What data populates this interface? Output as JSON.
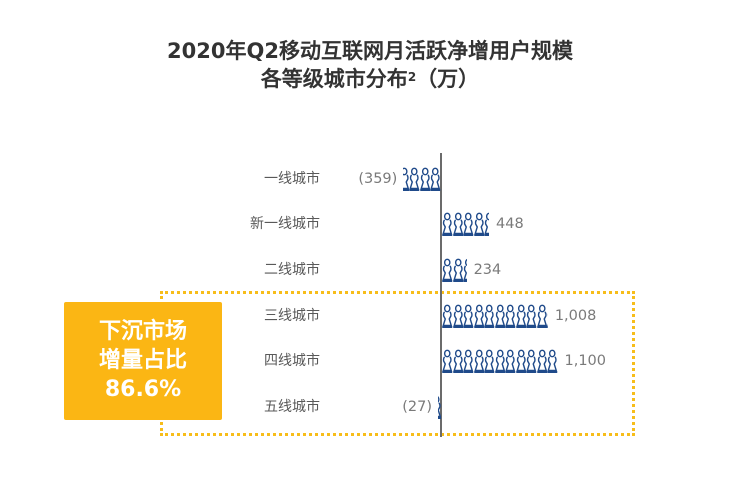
{
  "title": {
    "line1": "2020年Q2移动互联网月活跃净增用户规模",
    "line2": "各等级城市分布",
    "superscript": "2",
    "unit": "（万）"
  },
  "callout": {
    "line1": "下沉市场",
    "line2": "增量占比",
    "line3": "86.6%"
  },
  "colors": {
    "icon": "#1f4a8a",
    "callout_bg": "#fbb614",
    "dotted_border": "#f7bd1a",
    "axis": "#6b6b6b"
  },
  "chart_data": {
    "type": "bar",
    "orientation": "horizontal",
    "style": "pictogram (person icons, ~100万 per icon)",
    "title": "2020年Q2移动互联网月活跃净增用户规模各等级城市分布（万）",
    "unit": "万",
    "categories": [
      "一线城市",
      "新一线城市",
      "二线城市",
      "三线城市",
      "四线城市",
      "五线城市"
    ],
    "values": [
      -359,
      448,
      234,
      1008,
      1100,
      -27
    ],
    "value_labels": [
      "(359)",
      "448",
      "234",
      "1,008",
      "1,100",
      "(27)"
    ],
    "highlight": {
      "categories": [
        "三线城市",
        "四线城市",
        "五线城市"
      ],
      "label": "下沉市场增量占比 86.6%"
    },
    "xlabel": "",
    "ylabel": "",
    "grid": false,
    "legend": null
  }
}
